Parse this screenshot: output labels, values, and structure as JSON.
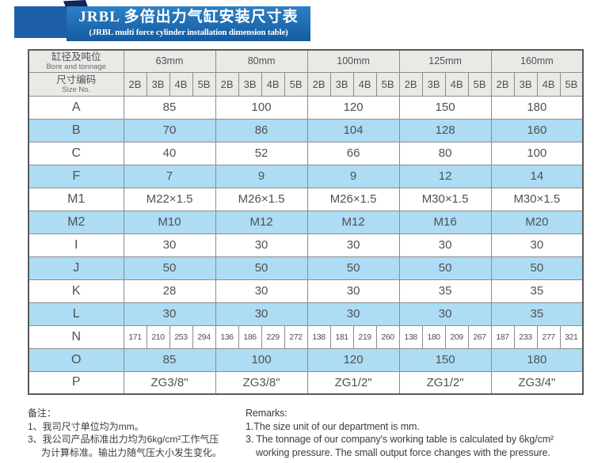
{
  "title": {
    "zh": "JRBL 多倍出力气缸安装尺寸表",
    "en": "(JRBL multi force cylinder installation dimension table)"
  },
  "colors": {
    "banner_blue": "#1f6cb2",
    "banner_square_blue": "#1d60a8",
    "banner_fold_navy": "#16265c",
    "stripe_blue": "#addcf4",
    "header_gray": "#e9e9e6",
    "border_gray": "#8c8c8c"
  },
  "table": {
    "header": {
      "col1_zh": "缸径及吨位",
      "col1_en": "Bore and tonnage",
      "col2_zh": "尺寸编码",
      "col2_en": "Size No.",
      "bores": [
        "63mm",
        "80mm",
        "100mm",
        "125mm",
        "160mm"
      ],
      "size_codes": [
        "2B",
        "3B",
        "4B",
        "5B"
      ]
    },
    "rows": [
      {
        "label": "A",
        "type": "merged",
        "striped": false,
        "values": [
          "85",
          "100",
          "120",
          "150",
          "180"
        ]
      },
      {
        "label": "B",
        "type": "merged",
        "striped": true,
        "values": [
          "70",
          "86",
          "104",
          "128",
          "160"
        ]
      },
      {
        "label": "C",
        "type": "merged",
        "striped": false,
        "values": [
          "40",
          "52",
          "66",
          "80",
          "100"
        ]
      },
      {
        "label": "F",
        "type": "merged",
        "striped": true,
        "values": [
          "7",
          "9",
          "9",
          "12",
          "14"
        ]
      },
      {
        "label": "M1",
        "type": "merged",
        "striped": false,
        "values": [
          "M22×1.5",
          "M26×1.5",
          "M26×1.5",
          "M30×1.5",
          "M30×1.5"
        ]
      },
      {
        "label": "M2",
        "type": "merged",
        "striped": true,
        "values": [
          "M10",
          "M12",
          "M12",
          "M16",
          "M20"
        ]
      },
      {
        "label": "I",
        "type": "merged",
        "striped": false,
        "values": [
          "30",
          "30",
          "30",
          "30",
          "30"
        ]
      },
      {
        "label": "J",
        "type": "merged",
        "striped": true,
        "values": [
          "50",
          "50",
          "50",
          "50",
          "50"
        ]
      },
      {
        "label": "K",
        "type": "merged",
        "striped": false,
        "values": [
          "28",
          "30",
          "30",
          "35",
          "35"
        ]
      },
      {
        "label": "L",
        "type": "merged",
        "striped": true,
        "values": [
          "30",
          "30",
          "30",
          "30",
          "35"
        ]
      },
      {
        "label": "N",
        "type": "split",
        "striped": false,
        "values": [
          "171",
          "210",
          "253",
          "294",
          "136",
          "186",
          "229",
          "272",
          "138",
          "181",
          "219",
          "260",
          "138",
          "180",
          "209",
          "267",
          "187",
          "233",
          "277",
          "321"
        ]
      },
      {
        "label": "O",
        "type": "merged",
        "striped": true,
        "values": [
          "85",
          "100",
          "120",
          "150",
          "180"
        ]
      },
      {
        "label": "P",
        "type": "merged",
        "striped": false,
        "values": [
          "ZG3/8\"",
          "ZG3/8\"",
          "ZG1/2\"",
          "ZG1/2\"",
          "ZG3/4\""
        ]
      }
    ]
  },
  "notes": {
    "zh": {
      "title": "备注：",
      "line1": "1、我司尺寸单位均为mm。",
      "line2": "3、我公司产品标准出力均为6kg/cm²工作气压",
      "line3": "为计算标准。输出力随气压大小发生变化。"
    },
    "en": {
      "title": "Remarks:",
      "line1": "1.The size unit of our department is mm.",
      "line2": "3. The tonnage of our company's working table is calculated by 6kg/cm²",
      "line3": "working pressure. The small output force changes with the pressure."
    }
  }
}
